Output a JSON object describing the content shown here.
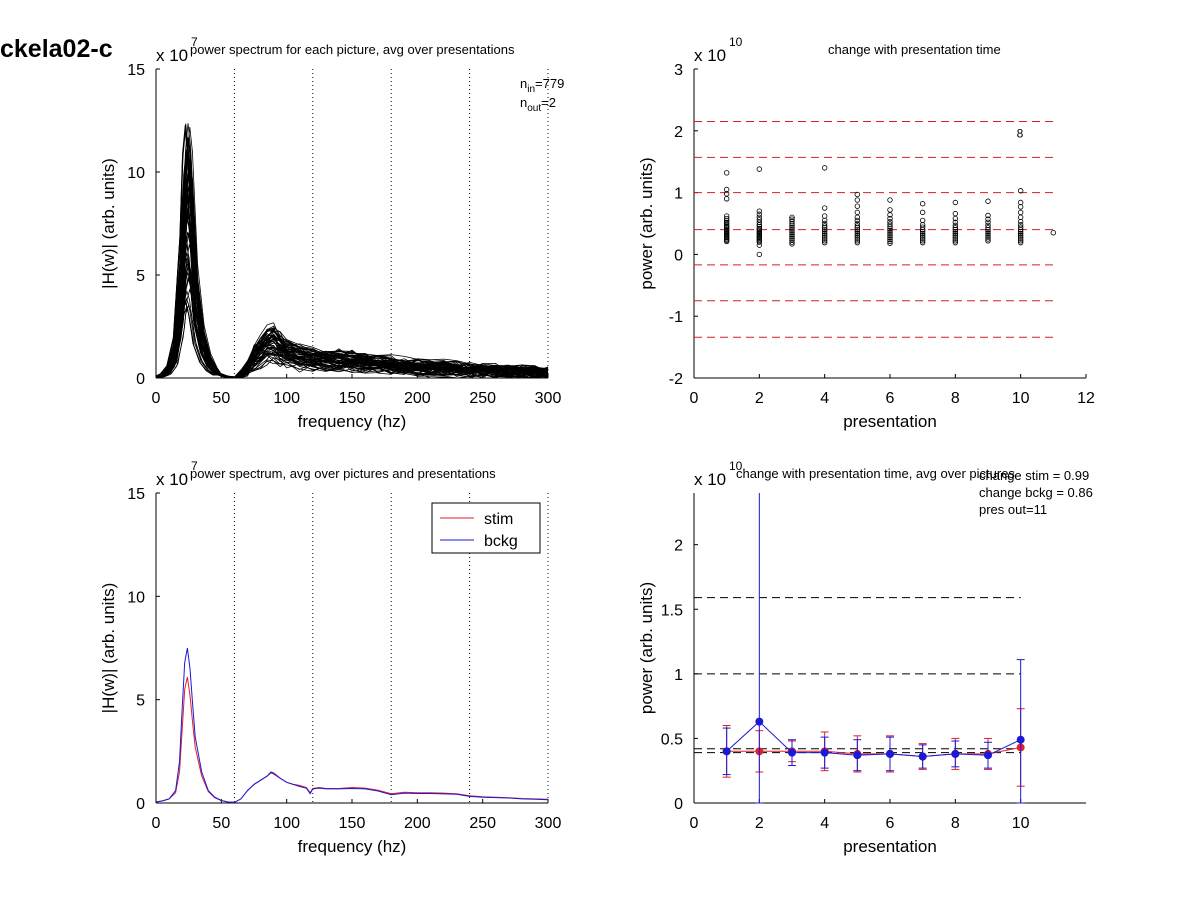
{
  "page_title": "ckela02-c",
  "colors": {
    "stim": "#e0202a",
    "bckg": "#1a1ad6",
    "ref_red": "#d42020",
    "ref_black": "#000000"
  },
  "chart_data": [
    {
      "id": "tl",
      "type": "line",
      "title": "power spectrum for each picture, avg over presentations",
      "xlabel": "frequency (hz)",
      "ylabel": "|H(w)| (arb. units)",
      "exponent_label": "x 10",
      "exponent": "7",
      "xlim": [
        0,
        300
      ],
      "ylim": [
        0,
        15
      ],
      "xticks": [
        0,
        50,
        100,
        150,
        200,
        250,
        300
      ],
      "yticks": [
        0,
        5,
        10,
        15
      ],
      "vlines": [
        60,
        120,
        180,
        240,
        300
      ],
      "annotation": {
        "n_in_label": "n",
        "n_in_sub": "in",
        "n_in_value": "=779",
        "n_out_label": "n",
        "n_out_sub": "out",
        "n_out_value": "=2"
      },
      "mean_profile": {
        "x": [
          0,
          5,
          10,
          15,
          20,
          22,
          24,
          26,
          28,
          30,
          35,
          40,
          45,
          50,
          55,
          60,
          65,
          70,
          75,
          80,
          85,
          90,
          95,
          100,
          110,
          120,
          130,
          140,
          150,
          160,
          170,
          180,
          190,
          200,
          210,
          220,
          230,
          240,
          250,
          260,
          270,
          280,
          290,
          300
        ],
        "y": [
          0.05,
          0.1,
          0.3,
          1.0,
          3.5,
          5.5,
          6.2,
          5.6,
          4.2,
          2.8,
          1.3,
          0.6,
          0.25,
          0.12,
          0.05,
          0.03,
          0.1,
          0.4,
          0.8,
          1.1,
          1.3,
          1.4,
          1.2,
          1.0,
          0.85,
          0.75,
          0.7,
          0.68,
          0.65,
          0.6,
          0.55,
          0.5,
          0.45,
          0.42,
          0.4,
          0.38,
          0.35,
          0.32,
          0.3,
          0.28,
          0.27,
          0.25,
          0.23,
          0.2
        ]
      },
      "num_traces": 60,
      "peak_max": 12.5
    },
    {
      "id": "tr",
      "type": "scatter",
      "title": "change with presentation time",
      "xlabel": "presentation",
      "ylabel": "power (arb. units)",
      "exponent_label": "x 10",
      "exponent": "10",
      "xlim": [
        0,
        12
      ],
      "ylim": [
        -2,
        3
      ],
      "xticks": [
        0,
        2,
        4,
        6,
        8,
        10,
        12
      ],
      "yticks": [
        -2,
        -1,
        0,
        1,
        2,
        3
      ],
      "hlines": [
        2.15,
        1.57,
        1.0,
        0.4,
        -0.17,
        -0.75,
        -1.34
      ],
      "outlier_label": {
        "x": 10,
        "y": 1.97,
        "text": "8"
      },
      "points": [
        {
          "x": 1,
          "values": [
            1.32,
            1.05,
            0.98,
            0.9,
            0.62,
            0.58,
            0.55,
            0.52,
            0.5,
            0.47,
            0.45,
            0.43,
            0.41,
            0.39,
            0.37,
            0.35,
            0.33,
            0.31,
            0.29,
            0.27,
            0.25,
            0.23,
            0.21
          ]
        },
        {
          "x": 2,
          "values": [
            1.38,
            0.7,
            0.65,
            0.6,
            0.56,
            0.52,
            0.48,
            0.45,
            0.42,
            0.4,
            0.38,
            0.36,
            0.34,
            0.32,
            0.3,
            0.28,
            0.26,
            0.24,
            0.22,
            0.2,
            0.15,
            0.0
          ]
        },
        {
          "x": 3,
          "values": [
            0.6,
            0.57,
            0.54,
            0.5,
            0.47,
            0.44,
            0.41,
            0.38,
            0.35,
            0.32,
            0.29,
            0.26,
            0.23,
            0.2,
            0.17
          ]
        },
        {
          "x": 4,
          "values": [
            1.4,
            0.75,
            0.62,
            0.55,
            0.5,
            0.46,
            0.43,
            0.4,
            0.37,
            0.34,
            0.31,
            0.28,
            0.25,
            0.22,
            0.19
          ]
        },
        {
          "x": 5,
          "values": [
            0.97,
            0.88,
            0.78,
            0.68,
            0.6,
            0.55,
            0.5,
            0.46,
            0.43,
            0.4,
            0.37,
            0.34,
            0.31,
            0.28,
            0.25,
            0.22,
            0.19
          ]
        },
        {
          "x": 6,
          "values": [
            0.88,
            0.72,
            0.64,
            0.58,
            0.53,
            0.49,
            0.45,
            0.42,
            0.39,
            0.36,
            0.33,
            0.3,
            0.27,
            0.24,
            0.21,
            0.18
          ]
        },
        {
          "x": 7,
          "values": [
            0.82,
            0.68,
            0.55,
            0.48,
            0.44,
            0.4,
            0.37,
            0.34,
            0.31,
            0.28,
            0.25,
            0.22,
            0.19
          ]
        },
        {
          "x": 8,
          "values": [
            0.84,
            0.66,
            0.58,
            0.52,
            0.47,
            0.43,
            0.4,
            0.37,
            0.34,
            0.31,
            0.28,
            0.25,
            0.22,
            0.19
          ]
        },
        {
          "x": 9,
          "values": [
            0.86,
            0.63,
            0.57,
            0.52,
            0.47,
            0.43,
            0.4,
            0.37,
            0.34,
            0.31,
            0.28,
            0.25,
            0.22
          ]
        },
        {
          "x": 10,
          "values": [
            1.03,
            0.84,
            0.77,
            0.68,
            0.6,
            0.53,
            0.48,
            0.44,
            0.4,
            0.37,
            0.34,
            0.31,
            0.28,
            0.25,
            0.22,
            0.19
          ]
        },
        {
          "x": 11,
          "values": [
            0.35
          ]
        }
      ]
    },
    {
      "id": "bl",
      "type": "line",
      "title": "power spectrum, avg over pictures and presentations",
      "xlabel": "frequency (hz)",
      "ylabel": "|H(w)| (arb. units)",
      "exponent_label": "x 10",
      "exponent": "7",
      "xlim": [
        0,
        300
      ],
      "ylim": [
        0,
        15
      ],
      "xticks": [
        0,
        50,
        100,
        150,
        200,
        250,
        300
      ],
      "yticks": [
        0,
        5,
        10,
        15
      ],
      "vlines": [
        60,
        120,
        180,
        240,
        300
      ],
      "legend": {
        "placement": "top-right",
        "entries": [
          "stim",
          "bckg"
        ]
      },
      "x": [
        0,
        5,
        10,
        15,
        18,
        20,
        22,
        24,
        26,
        28,
        30,
        35,
        40,
        45,
        50,
        55,
        60,
        65,
        70,
        75,
        80,
        85,
        88,
        90,
        95,
        100,
        105,
        110,
        115,
        118,
        120,
        125,
        130,
        140,
        150,
        160,
        170,
        180,
        190,
        200,
        210,
        220,
        230,
        240,
        250,
        260,
        270,
        280,
        290,
        300
      ],
      "series": [
        {
          "name": "stim",
          "values": [
            0.05,
            0.1,
            0.2,
            0.5,
            1.5,
            3.5,
            5.5,
            6.1,
            5.2,
            3.9,
            2.7,
            1.3,
            0.55,
            0.25,
            0.12,
            0.05,
            0.03,
            0.2,
            0.6,
            0.9,
            1.1,
            1.3,
            1.45,
            1.4,
            1.2,
            1.0,
            0.9,
            0.85,
            0.75,
            0.5,
            0.7,
            0.75,
            0.7,
            0.7,
            0.75,
            0.72,
            0.62,
            0.45,
            0.52,
            0.5,
            0.5,
            0.48,
            0.45,
            0.35,
            0.3,
            0.28,
            0.25,
            0.22,
            0.2,
            0.18
          ]
        },
        {
          "name": "bckg",
          "values": [
            0.05,
            0.1,
            0.2,
            0.6,
            2.0,
            4.5,
            6.8,
            7.5,
            6.5,
            4.8,
            3.2,
            1.5,
            0.6,
            0.28,
            0.12,
            0.05,
            0.03,
            0.2,
            0.6,
            0.9,
            1.1,
            1.3,
            1.5,
            1.45,
            1.2,
            1.0,
            0.9,
            0.8,
            0.72,
            0.45,
            0.68,
            0.72,
            0.68,
            0.68,
            0.7,
            0.68,
            0.58,
            0.4,
            0.48,
            0.46,
            0.46,
            0.44,
            0.42,
            0.32,
            0.28,
            0.26,
            0.24,
            0.2,
            0.18,
            0.16
          ]
        }
      ]
    },
    {
      "id": "br",
      "type": "line",
      "title": "change with presentation time, avg over pictures",
      "xlabel": "presentation",
      "ylabel": "power (arb. units)",
      "exponent_label": "x 10",
      "exponent": "10",
      "xlim": [
        0,
        12
      ],
      "ylim": [
        0,
        2.4
      ],
      "xticks": [
        0,
        2,
        4,
        6,
        8,
        10
      ],
      "yticks": [
        0,
        0.5,
        1,
        1.5,
        2
      ],
      "ytick_labels": [
        "0",
        "0.5",
        "1",
        "1.5",
        "2"
      ],
      "hlines": [
        1.59,
        1.0,
        0.42,
        0.39
      ],
      "annotations": [
        "change stim = 0.99",
        "change bckg = 0.86",
        "pres out=11"
      ],
      "x": [
        1,
        2,
        3,
        4,
        5,
        6,
        7,
        8,
        9,
        10
      ],
      "series": [
        {
          "name": "stim",
          "values": [
            0.4,
            0.4,
            0.4,
            0.4,
            0.38,
            0.38,
            0.36,
            0.38,
            0.38,
            0.43
          ],
          "err": [
            0.2,
            0.16,
            0.08,
            0.15,
            0.14,
            0.14,
            0.1,
            0.12,
            0.12,
            0.3
          ]
        },
        {
          "name": "bckg",
          "values": [
            0.4,
            0.63,
            0.39,
            0.39,
            0.37,
            0.38,
            0.36,
            0.38,
            0.37,
            0.49
          ],
          "err": [
            0.18,
            1.8,
            0.1,
            0.12,
            0.12,
            0.13,
            0.09,
            0.1,
            0.1,
            0.62
          ]
        }
      ]
    }
  ]
}
